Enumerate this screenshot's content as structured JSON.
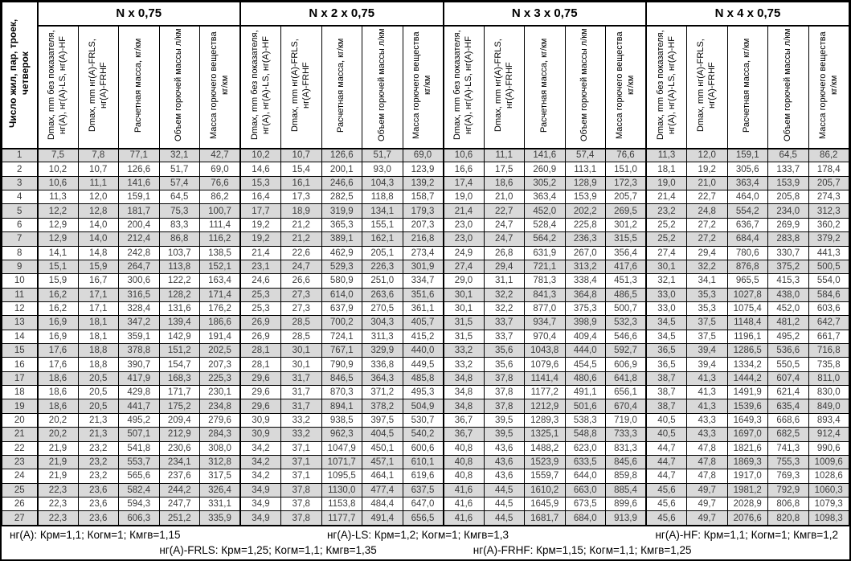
{
  "colors": {
    "row_stripe": "#d9d9d9",
    "border": "#000000",
    "data_text": "#3c3c3c"
  },
  "table": {
    "row_header": "Число жил, пар, троек, четверок",
    "groups": [
      {
        "title": "N x 0,75"
      },
      {
        "title": "N x 2 x 0,75"
      },
      {
        "title": "N x 3 x 0,75"
      },
      {
        "title": "N x 4 x 0,75"
      }
    ],
    "col_headers": [
      "Dmax, mm без показателя, нг(A), нг(A)-LS, нг(A)-HF",
      "Dmax, mm нг(A)-FRLS, нг(A)-FRHF",
      "Расчетная масса, кг/км",
      "Объем горючей массы л/км",
      "Масса горючего вещества кг/км"
    ],
    "rows": [
      [
        "1",
        "7,5",
        "7,8",
        "77,1",
        "32,1",
        "42,7",
        "10,2",
        "10,7",
        "126,6",
        "51,7",
        "69,0",
        "10,6",
        "11,1",
        "141,6",
        "57,4",
        "76,6",
        "11,3",
        "12,0",
        "159,1",
        "64,5",
        "86,2"
      ],
      [
        "2",
        "10,2",
        "10,7",
        "126,6",
        "51,7",
        "69,0",
        "14,6",
        "15,4",
        "200,1",
        "93,0",
        "123,9",
        "16,6",
        "17,5",
        "260,9",
        "113,1",
        "151,0",
        "18,1",
        "19,2",
        "305,6",
        "133,7",
        "178,4"
      ],
      [
        "3",
        "10,6",
        "11,1",
        "141,6",
        "57,4",
        "76,6",
        "15,3",
        "16,1",
        "246,6",
        "104,3",
        "139,2",
        "17,4",
        "18,6",
        "305,2",
        "128,9",
        "172,3",
        "19,0",
        "21,0",
        "363,4",
        "153,9",
        "205,7"
      ],
      [
        "4",
        "11,3",
        "12,0",
        "159,1",
        "64,5",
        "86,2",
        "16,4",
        "17,3",
        "282,5",
        "118,8",
        "158,7",
        "19,0",
        "21,0",
        "363,4",
        "153,9",
        "205,7",
        "21,4",
        "22,7",
        "464,0",
        "205,8",
        "274,3"
      ],
      [
        "5",
        "12,2",
        "12,8",
        "181,7",
        "75,3",
        "100,7",
        "17,7",
        "18,9",
        "319,9",
        "134,1",
        "179,3",
        "21,4",
        "22,7",
        "452,0",
        "202,2",
        "269,5",
        "23,2",
        "24,8",
        "554,2",
        "234,0",
        "312,3"
      ],
      [
        "6",
        "12,9",
        "14,0",
        "200,4",
        "83,3",
        "111,4",
        "19,2",
        "21,2",
        "365,3",
        "155,1",
        "207,3",
        "23,0",
        "24,7",
        "528,4",
        "225,8",
        "301,2",
        "25,2",
        "27,2",
        "636,7",
        "269,9",
        "360,2"
      ],
      [
        "7",
        "12,9",
        "14,0",
        "212,4",
        "86,8",
        "116,2",
        "19,2",
        "21,2",
        "389,1",
        "162,1",
        "216,8",
        "23,0",
        "24,7",
        "564,2",
        "236,3",
        "315,5",
        "25,2",
        "27,2",
        "684,4",
        "283,8",
        "379,2"
      ],
      [
        "8",
        "14,1",
        "14,8",
        "242,8",
        "103,7",
        "138,5",
        "21,4",
        "22,6",
        "462,9",
        "205,1",
        "273,4",
        "24,9",
        "26,8",
        "631,9",
        "267,0",
        "356,4",
        "27,4",
        "29,4",
        "780,6",
        "330,7",
        "441,3"
      ],
      [
        "9",
        "15,1",
        "15,9",
        "264,7",
        "113,8",
        "152,1",
        "23,1",
        "24,7",
        "529,3",
        "226,3",
        "301,9",
        "27,4",
        "29,4",
        "721,1",
        "313,2",
        "417,6",
        "30,1",
        "32,2",
        "876,8",
        "375,2",
        "500,5"
      ],
      [
        "10",
        "15,9",
        "16,7",
        "300,6",
        "122,2",
        "163,4",
        "24,6",
        "26,6",
        "580,9",
        "251,0",
        "334,7",
        "29,0",
        "31,1",
        "781,3",
        "338,4",
        "451,3",
        "32,1",
        "34,1",
        "965,5",
        "415,3",
        "554,0"
      ],
      [
        "11",
        "16,2",
        "17,1",
        "316,5",
        "128,2",
        "171,4",
        "25,3",
        "27,3",
        "614,0",
        "263,6",
        "351,6",
        "30,1",
        "32,2",
        "841,3",
        "364,8",
        "486,5",
        "33,0",
        "35,3",
        "1027,8",
        "438,0",
        "584,6"
      ],
      [
        "12",
        "16,2",
        "17,1",
        "328,4",
        "131,6",
        "176,2",
        "25,3",
        "27,3",
        "637,9",
        "270,5",
        "361,1",
        "30,1",
        "32,2",
        "877,0",
        "375,3",
        "500,7",
        "33,0",
        "35,3",
        "1075,4",
        "452,0",
        "603,6"
      ],
      [
        "13",
        "16,9",
        "18,1",
        "347,2",
        "139,4",
        "186,6",
        "26,9",
        "28,5",
        "700,2",
        "304,3",
        "405,7",
        "31,5",
        "33,7",
        "934,7",
        "398,9",
        "532,3",
        "34,5",
        "37,5",
        "1148,4",
        "481,2",
        "642,7"
      ],
      [
        "14",
        "16,9",
        "18,1",
        "359,1",
        "142,9",
        "191,4",
        "26,9",
        "28,5",
        "724,1",
        "311,3",
        "415,2",
        "31,5",
        "33,7",
        "970,4",
        "409,4",
        "546,6",
        "34,5",
        "37,5",
        "1196,1",
        "495,2",
        "661,7"
      ],
      [
        "15",
        "17,6",
        "18,8",
        "378,8",
        "151,2",
        "202,5",
        "28,1",
        "30,1",
        "767,1",
        "329,9",
        "440,0",
        "33,2",
        "35,6",
        "1043,8",
        "444,0",
        "592,7",
        "36,5",
        "39,4",
        "1286,5",
        "536,6",
        "716,8"
      ],
      [
        "16",
        "17,6",
        "18,8",
        "390,7",
        "154,7",
        "207,3",
        "28,1",
        "30,1",
        "790,9",
        "336,8",
        "449,5",
        "33,2",
        "35,6",
        "1079,6",
        "454,5",
        "606,9",
        "36,5",
        "39,4",
        "1334,2",
        "550,5",
        "735,8"
      ],
      [
        "17",
        "18,6",
        "20,5",
        "417,9",
        "168,3",
        "225,3",
        "29,6",
        "31,7",
        "846,5",
        "364,3",
        "485,8",
        "34,8",
        "37,8",
        "1141,4",
        "480,6",
        "641,8",
        "38,7",
        "41,3",
        "1444,2",
        "607,4",
        "811,0"
      ],
      [
        "18",
        "18,6",
        "20,5",
        "429,8",
        "171,7",
        "230,1",
        "29,6",
        "31,7",
        "870,3",
        "371,2",
        "495,3",
        "34,8",
        "37,8",
        "1177,2",
        "491,1",
        "656,1",
        "38,7",
        "41,3",
        "1491,9",
        "621,4",
        "830,0"
      ],
      [
        "19",
        "18,6",
        "20,5",
        "441,7",
        "175,2",
        "234,8",
        "29,6",
        "31,7",
        "894,1",
        "378,2",
        "504,9",
        "34,8",
        "37,8",
        "1212,9",
        "501,6",
        "670,4",
        "38,7",
        "41,3",
        "1539,6",
        "635,4",
        "849,0"
      ],
      [
        "20",
        "20,2",
        "21,3",
        "495,2",
        "209,4",
        "279,6",
        "30,9",
        "33,2",
        "938,5",
        "397,5",
        "530,7",
        "36,7",
        "39,5",
        "1289,3",
        "538,3",
        "719,0",
        "40,5",
        "43,3",
        "1649,3",
        "668,6",
        "893,4"
      ],
      [
        "21",
        "20,2",
        "21,3",
        "507,1",
        "212,9",
        "284,3",
        "30,9",
        "33,2",
        "962,3",
        "404,5",
        "540,2",
        "36,7",
        "39,5",
        "1325,1",
        "548,8",
        "733,3",
        "40,5",
        "43,3",
        "1697,0",
        "682,5",
        "912,4"
      ],
      [
        "22",
        "21,9",
        "23,2",
        "541,8",
        "230,6",
        "308,0",
        "34,2",
        "37,1",
        "1047,9",
        "450,1",
        "600,6",
        "40,8",
        "43,6",
        "1488,2",
        "623,0",
        "831,3",
        "44,7",
        "47,8",
        "1821,6",
        "741,3",
        "990,6"
      ],
      [
        "23",
        "21,9",
        "23,2",
        "553,7",
        "234,1",
        "312,8",
        "34,2",
        "37,1",
        "1071,7",
        "457,1",
        "610,1",
        "40,8",
        "43,6",
        "1523,9",
        "633,5",
        "845,6",
        "44,7",
        "47,8",
        "1869,3",
        "755,3",
        "1009,6"
      ],
      [
        "24",
        "21,9",
        "23,2",
        "565,6",
        "237,6",
        "317,5",
        "34,2",
        "37,1",
        "1095,5",
        "464,1",
        "619,6",
        "40,8",
        "43,6",
        "1559,7",
        "644,0",
        "859,8",
        "44,7",
        "47,8",
        "1917,0",
        "769,3",
        "1028,6"
      ],
      [
        "25",
        "22,3",
        "23,6",
        "582,4",
        "244,2",
        "326,4",
        "34,9",
        "37,8",
        "1130,0",
        "477,4",
        "637,5",
        "41,6",
        "44,5",
        "1610,2",
        "663,0",
        "885,4",
        "45,6",
        "49,7",
        "1981,2",
        "792,9",
        "1060,3"
      ],
      [
        "26",
        "22,3",
        "23,6",
        "594,3",
        "247,7",
        "331,1",
        "34,9",
        "37,8",
        "1153,8",
        "484,4",
        "647,0",
        "41,6",
        "44,5",
        "1645,9",
        "673,5",
        "899,6",
        "45,6",
        "49,7",
        "2028,9",
        "806,8",
        "1079,3"
      ],
      [
        "27",
        "22,3",
        "23,6",
        "606,3",
        "251,2",
        "335,9",
        "34,9",
        "37,8",
        "1177,7",
        "491,4",
        "656,5",
        "41,6",
        "44,5",
        "1681,7",
        "684,0",
        "913,9",
        "45,6",
        "49,7",
        "2076,6",
        "820,8",
        "1098,3"
      ]
    ]
  },
  "footer": {
    "line1": [
      "нг(A): Крм=1,1;  Когм=1;  Кмгв=1,15",
      "нг(A)-LS: Крм=1,2;  Когм=1;  Кмгв=1,3",
      "нг(A)-HF: Крм=1,1;  Когм=1;  Кмгв=1,2"
    ],
    "line2": [
      "нг(A)-FRLS: Крм=1,25;  Когм=1,1;  Кмгв=1,35",
      "нг(A)-FRHF: Крм=1,15;  Когм=1,1;  Кмгв=1,25"
    ]
  }
}
